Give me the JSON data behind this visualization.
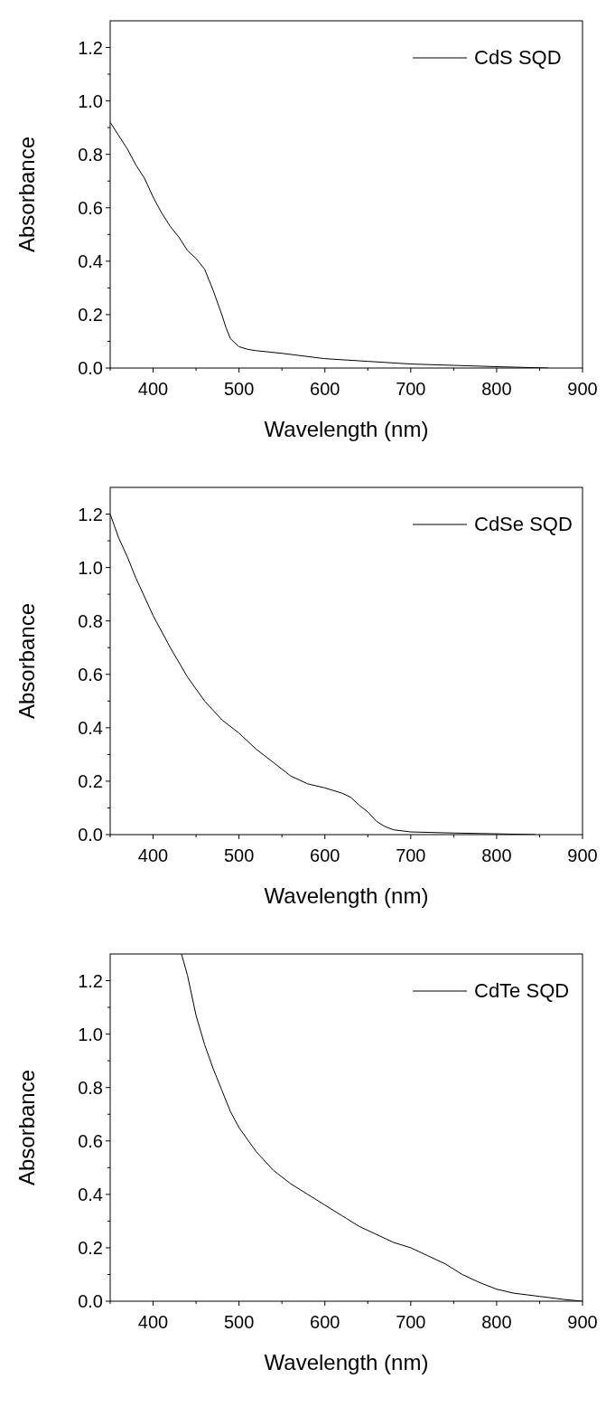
{
  "chart_data": [
    {
      "type": "line",
      "xlabel": "Wavelength (nm)",
      "ylabel": "Absorbance",
      "xlim": [
        350,
        900
      ],
      "ylim": [
        0,
        1.3
      ],
      "xticks": [
        {
          "value": 350,
          "label": null
        },
        400,
        {
          "value": 450,
          "label": null
        },
        500,
        {
          "value": 550,
          "label": null
        },
        600,
        {
          "value": 650,
          "label": null
        },
        700,
        {
          "value": 750,
          "label": null
        },
        800,
        {
          "value": 850,
          "label": null
        },
        900
      ],
      "yticks": [
        {
          "value": 0,
          "label": "0.0"
        },
        {
          "value": 0.1,
          "label": null
        },
        0.2,
        {
          "value": 0.3,
          "label": null
        },
        0.4,
        {
          "value": 0.5,
          "label": null
        },
        0.6,
        {
          "value": 0.7,
          "label": null
        },
        0.8,
        {
          "value": 0.9,
          "label": null
        },
        {
          "value": 1,
          "label": "1.0"
        },
        {
          "value": 1.1,
          "label": null
        },
        1.2
      ],
      "grid": false,
      "legend": "top right",
      "line_style": "solid",
      "marker": "none",
      "series": [
        {
          "name": "CdS SQD",
          "color": "#000000",
          "x": [
            350,
            360,
            370,
            380,
            390,
            400,
            410,
            420,
            430,
            440,
            450,
            460,
            465,
            470,
            480,
            485,
            490,
            500,
            510,
            520,
            550,
            600,
            650,
            700,
            750,
            800,
            860
          ],
          "values": [
            0.92,
            0.87,
            0.82,
            0.76,
            0.71,
            0.64,
            0.58,
            0.53,
            0.49,
            0.44,
            0.41,
            0.37,
            0.33,
            0.29,
            0.2,
            0.15,
            0.11,
            0.08,
            0.07,
            0.065,
            0.055,
            0.035,
            0.025,
            0.015,
            0.01,
            0.005,
            0.0
          ]
        }
      ]
    },
    {
      "type": "line",
      "xlabel": "Wavelength (nm)",
      "ylabel": "Absorbance",
      "xlim": [
        350,
        900
      ],
      "ylim": [
        0,
        1.3
      ],
      "xticks": [
        {
          "value": 350,
          "label": null
        },
        400,
        {
          "value": 450,
          "label": null
        },
        500,
        {
          "value": 550,
          "label": null
        },
        600,
        {
          "value": 650,
          "label": null
        },
        700,
        {
          "value": 750,
          "label": null
        },
        800,
        {
          "value": 850,
          "label": null
        },
        900
      ],
      "yticks": [
        {
          "value": 0,
          "label": "0.0"
        },
        {
          "value": 0.1,
          "label": null
        },
        0.2,
        {
          "value": 0.3,
          "label": null
        },
        0.4,
        {
          "value": 0.5,
          "label": null
        },
        0.6,
        {
          "value": 0.7,
          "label": null
        },
        0.8,
        {
          "value": 0.9,
          "label": null
        },
        {
          "value": 1,
          "label": "1.0"
        },
        {
          "value": 1.1,
          "label": null
        },
        1.2
      ],
      "grid": false,
      "legend": "top right",
      "line_style": "solid",
      "marker": "none",
      "series": [
        {
          "name": "CdSe SQD",
          "color": "#000000",
          "x": [
            350,
            360,
            370,
            380,
            390,
            400,
            420,
            440,
            460,
            480,
            500,
            520,
            540,
            560,
            580,
            600,
            620,
            630,
            640,
            650,
            660,
            670,
            680,
            700,
            750,
            800,
            845
          ],
          "values": [
            1.2,
            1.11,
            1.04,
            0.96,
            0.89,
            0.82,
            0.7,
            0.59,
            0.5,
            0.43,
            0.38,
            0.32,
            0.27,
            0.22,
            0.19,
            0.175,
            0.155,
            0.14,
            0.11,
            0.085,
            0.05,
            0.03,
            0.018,
            0.01,
            0.006,
            0.003,
            0.0
          ]
        }
      ]
    },
    {
      "type": "line",
      "xlabel": "Wavelength (nm)",
      "ylabel": "Absorbance",
      "xlim": [
        350,
        900
      ],
      "ylim": [
        0,
        1.3
      ],
      "xticks": [
        {
          "value": 350,
          "label": null
        },
        400,
        {
          "value": 450,
          "label": null
        },
        500,
        {
          "value": 550,
          "label": null
        },
        600,
        {
          "value": 650,
          "label": null
        },
        700,
        {
          "value": 750,
          "label": null
        },
        800,
        {
          "value": 850,
          "label": null
        },
        900
      ],
      "yticks": [
        {
          "value": 0,
          "label": "0.0"
        },
        {
          "value": 0.1,
          "label": null
        },
        0.2,
        {
          "value": 0.3,
          "label": null
        },
        0.4,
        {
          "value": 0.5,
          "label": null
        },
        0.6,
        {
          "value": 0.7,
          "label": null
        },
        0.8,
        {
          "value": 0.9,
          "label": null
        },
        {
          "value": 1,
          "label": "1.0"
        },
        {
          "value": 1.1,
          "label": null
        },
        1.2
      ],
      "grid": false,
      "legend": "top right",
      "line_style": "solid",
      "marker": "none",
      "series": [
        {
          "name": "CdTe SQD",
          "color": "#000000",
          "x": [
            433,
            440,
            450,
            460,
            470,
            480,
            490,
            500,
            520,
            540,
            560,
            580,
            600,
            620,
            625,
            640,
            660,
            680,
            700,
            720,
            740,
            760,
            780,
            800,
            820,
            850,
            880,
            900
          ],
          "values": [
            1.3,
            1.22,
            1.07,
            0.96,
            0.87,
            0.79,
            0.71,
            0.65,
            0.56,
            0.49,
            0.44,
            0.4,
            0.36,
            0.32,
            0.31,
            0.28,
            0.25,
            0.22,
            0.2,
            0.17,
            0.14,
            0.1,
            0.07,
            0.045,
            0.03,
            0.018,
            0.006,
            0.0
          ]
        }
      ]
    }
  ]
}
